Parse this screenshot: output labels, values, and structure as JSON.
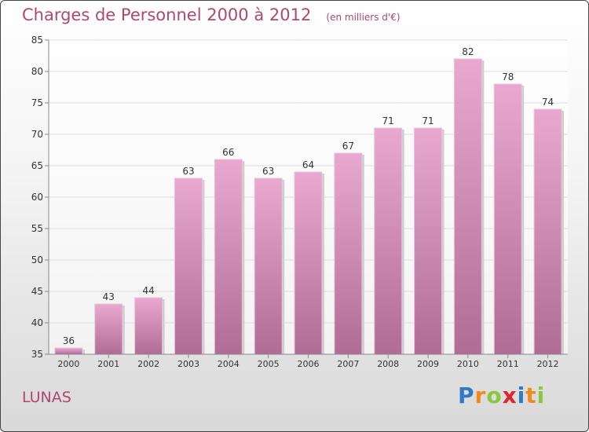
{
  "title": "Charges de Personnel 2000 à 2012",
  "subtitle": "(en milliers d'€)",
  "region_label": "LUNAS",
  "logo": {
    "letters": [
      "P",
      "r",
      "o",
      "x",
      "i",
      "t",
      "i"
    ],
    "colors": [
      "#2e7bc4",
      "#f18a1c",
      "#8cc63f",
      "#e2232a",
      "#2e7bc4",
      "#f18a1c",
      "#8cc63f"
    ]
  },
  "colors": {
    "bar_top": "#e9a9cf",
    "bar_bottom": "#b06d93",
    "text": "#b0476f",
    "grid": "#dddddd"
  },
  "chart_data": {
    "type": "bar",
    "categories": [
      "2000",
      "2001",
      "2002",
      "2003",
      "2004",
      "2005",
      "2006",
      "2007",
      "2008",
      "2009",
      "2010",
      "2011",
      "2012"
    ],
    "values": [
      36,
      43,
      44,
      63,
      66,
      63,
      64,
      67,
      71,
      71,
      82,
      78,
      74
    ],
    "title": "Charges de Personnel 2000 à 2012",
    "ylim": [
      35,
      85
    ],
    "yticks": [
      35,
      40,
      45,
      50,
      55,
      60,
      65,
      70,
      75,
      80,
      85
    ],
    "grid": true
  }
}
